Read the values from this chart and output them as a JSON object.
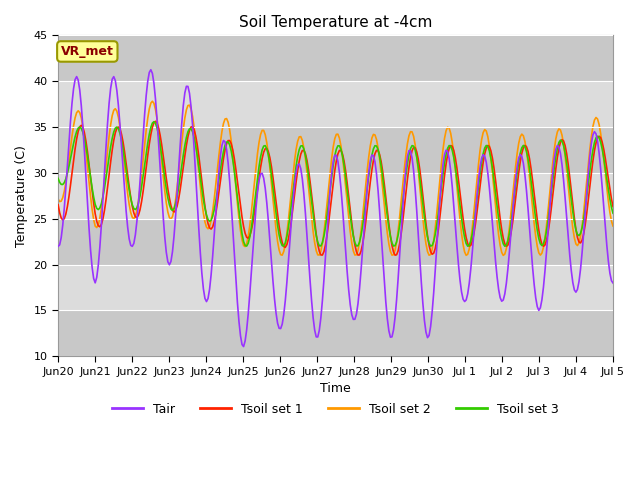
{
  "title": "Soil Temperature at -4cm",
  "xlabel": "Time",
  "ylabel": "Temperature (C)",
  "ylim": [
    10,
    45
  ],
  "xlim_start": 0,
  "xlim_end": 15,
  "annotation_text": "VR_met",
  "annotation_color": "#8B0000",
  "annotation_box_color": "#FFFF99",
  "bg_light": "#DCDCDC",
  "bg_dark": "#C8C8C8",
  "colors": {
    "Tair": "#9933FF",
    "Tsoil_set1": "#FF2200",
    "Tsoil_set2": "#FF9900",
    "Tsoil_set3": "#33CC00"
  },
  "x_tick_labels": [
    "Jun 20",
    "Jun 21",
    "Jun 22",
    "Jun 23",
    "Jun 24",
    "Jun 25",
    "Jun 26",
    "Jun 27",
    "Jun 28",
    "Jun 29",
    "Jun 30",
    "Jul 1",
    "Jul 2",
    "Jul 3",
    "Jul 4",
    "Jul 5"
  ],
  "x_tick_positions": [
    0,
    1,
    2,
    3,
    4,
    5,
    6,
    7,
    8,
    9,
    10,
    11,
    12,
    13,
    14,
    15
  ],
  "y_ticks": [
    10,
    15,
    20,
    25,
    30,
    35,
    40,
    45
  ],
  "legend_labels": [
    "Tair",
    "Tsoil set 1",
    "Tsoil set 2",
    "Tsoil set 3"
  ],
  "figsize": [
    6.4,
    4.8
  ],
  "dpi": 100
}
